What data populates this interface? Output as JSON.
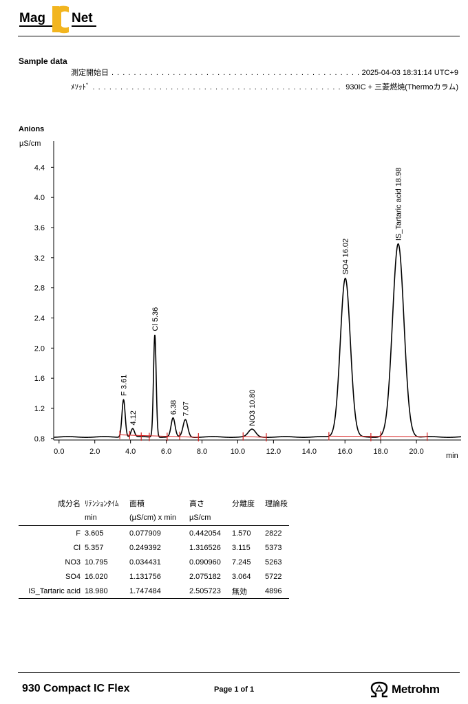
{
  "header": {
    "logo": {
      "text_left": "Mag",
      "text_right": "Net",
      "mark": "IC",
      "colors": {
        "mark": "#f2b51f",
        "text": "#000000"
      }
    }
  },
  "sample": {
    "title": "Sample data",
    "rows": [
      {
        "label": "測定開始日",
        "value": "2025-04-03 18:31:14 UTC+9"
      },
      {
        "label": "ﾒｿｯﾄﾞ",
        "value": "930IC + 三菱燃焼(Thermoカラム)"
      }
    ]
  },
  "anions_title": "Anions",
  "chart_data": {
    "type": "line",
    "ylabel": "µS/cm",
    "xlabel": "min",
    "xlim": [
      -0.3,
      22.5
    ],
    "ylim": [
      0.78,
      4.75
    ],
    "xticks": [
      "0.0",
      "2.0",
      "4.0",
      "6.0",
      "8.0",
      "10.0",
      "12.0",
      "14.0",
      "16.0",
      "18.0",
      "20.0"
    ],
    "yticks": [
      "0.8",
      "1.2",
      "1.6",
      "2.0",
      "2.4",
      "2.8",
      "3.2",
      "3.6",
      "4.0",
      "4.4"
    ],
    "baseline": 0.82,
    "peaks": [
      {
        "label": "F 3.61",
        "rt": 3.61,
        "apex": 1.32,
        "sigma": 0.09
      },
      {
        "label": "4.12",
        "rt": 4.12,
        "apex": 0.93,
        "sigma": 0.1
      },
      {
        "label": "Cl 5.36",
        "rt": 5.36,
        "apex": 2.18,
        "sigma": 0.075
      },
      {
        "label": "6.38",
        "rt": 6.38,
        "apex": 1.07,
        "sigma": 0.11
      },
      {
        "label": "7.07",
        "rt": 7.07,
        "apex": 1.05,
        "sigma": 0.13
      },
      {
        "label": "NO3 10.80",
        "rt": 10.8,
        "apex": 0.92,
        "sigma": 0.2
      },
      {
        "label": "SO4 16.02",
        "rt": 16.02,
        "apex": 2.93,
        "sigma": 0.28
      },
      {
        "label": "IS_Tartaric acid 18.98",
        "rt": 18.98,
        "apex": 3.38,
        "sigma": 0.32
      }
    ],
    "integration_markers": [
      3.4,
      3.95,
      4.6,
      5.05,
      6.05,
      6.75,
      7.8,
      10.3,
      11.6,
      15.1,
      17.45,
      18.0,
      20.6
    ],
    "colors": {
      "trace": "#000000",
      "marker": "#d62020"
    }
  },
  "results_table": {
    "headers": [
      "成分名",
      "ﾘﾃﾝｼｮﾝﾀｲﾑ",
      "面積",
      "高さ",
      "分離度",
      "理論段"
    ],
    "units": [
      "",
      "min",
      "(µS/cm) x min",
      "µS/cm",
      "",
      ""
    ],
    "rows": [
      [
        "F",
        "3.605",
        "0.077909",
        "0.442054",
        "1.570",
        "2822"
      ],
      [
        "Cl",
        "5.357",
        "0.249392",
        "1.316526",
        "3.115",
        "5373"
      ],
      [
        "NO3",
        "10.795",
        "0.034431",
        "0.090960",
        "7.245",
        "5263"
      ],
      [
        "SO4",
        "16.020",
        "1.131756",
        "2.075182",
        "3.064",
        "5722"
      ],
      [
        "IS_Tartaric acid",
        "18.980",
        "1.747484",
        "2.505723",
        "無効",
        "4896"
      ]
    ]
  },
  "footer": {
    "product": "930 Compact IC Flex",
    "page": "Page 1 of 1",
    "brand": "Metrohm",
    "brand_icon": "metrohm-omega-icon"
  }
}
